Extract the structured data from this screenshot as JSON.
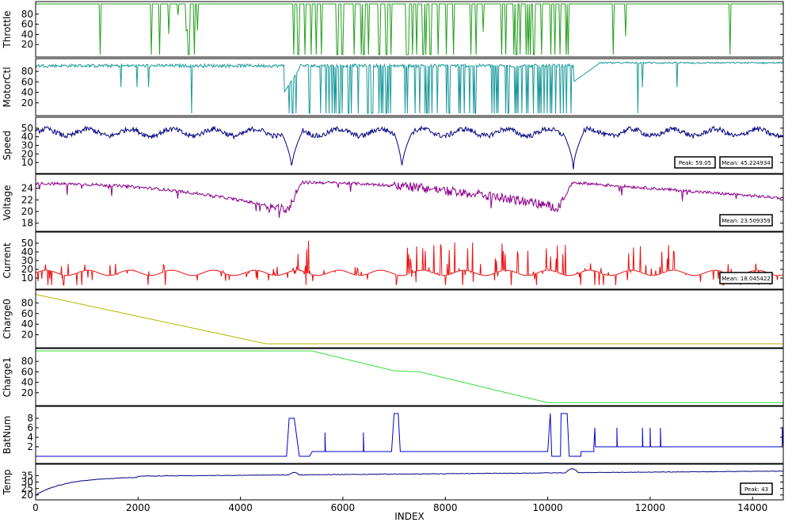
{
  "chart_data": {
    "type": "line",
    "x_label": "INDEX",
    "x_range": [
      0,
      14600
    ],
    "x_ticks": [
      0,
      2000,
      4000,
      6000,
      8000,
      10000,
      12000,
      14000
    ],
    "panels": [
      {
        "key": "throttle",
        "ylabel": "Throttle",
        "color": "#22a01c",
        "ylim": [
          0,
          100
        ],
        "y_ticks": [
          20,
          40,
          60,
          80
        ],
        "generator": "throttle",
        "annotations": [],
        "approx_series": [
          {
            "x": 0,
            "y": 100
          },
          {
            "x": 4900,
            "y": 100
          },
          {
            "x": 5000,
            "y": 0
          },
          {
            "x": 5300,
            "y": 100
          },
          {
            "x": 7000,
            "y": 100
          },
          {
            "x": 7200,
            "y": 0
          },
          {
            "x": 7300,
            "y": 100
          },
          {
            "x": 10300,
            "y": 100
          },
          {
            "x": 10500,
            "y": 0
          },
          {
            "x": 10700,
            "y": 100
          },
          {
            "x": 14600,
            "y": 100
          }
        ]
      },
      {
        "key": "motorctl",
        "ylabel": "MotorCtl",
        "color": "#1a9a9a",
        "ylim": [
          0,
          100
        ],
        "y_ticks": [
          20,
          40,
          60,
          80
        ],
        "generator": "motorctl",
        "annotations": [],
        "approx_series": [
          {
            "x": 0,
            "y": 92
          },
          {
            "x": 4800,
            "y": 92
          },
          {
            "x": 5000,
            "y": 20
          },
          {
            "x": 5400,
            "y": 90
          },
          {
            "x": 7100,
            "y": 88
          },
          {
            "x": 7300,
            "y": 20
          },
          {
            "x": 7500,
            "y": 88
          },
          {
            "x": 10400,
            "y": 90
          },
          {
            "x": 10600,
            "y": 55
          },
          {
            "x": 11000,
            "y": 95
          },
          {
            "x": 14600,
            "y": 98
          }
        ]
      },
      {
        "key": "speed",
        "ylabel": "Speed",
        "color": "#00007f",
        "ylim": [
          0,
          60
        ],
        "y_ticks": [
          10,
          20,
          30,
          40,
          50
        ],
        "generator": "speed",
        "annotations": [
          "Peak: 59.05",
          "Mean: 45.224934"
        ],
        "approx_series": [
          {
            "x": 0,
            "y": 45
          },
          {
            "x": 4800,
            "y": 45
          },
          {
            "x": 5000,
            "y": 2
          },
          {
            "x": 5200,
            "y": 45
          },
          {
            "x": 7000,
            "y": 45
          },
          {
            "x": 7150,
            "y": 2
          },
          {
            "x": 7350,
            "y": 45
          },
          {
            "x": 10300,
            "y": 45
          },
          {
            "x": 10500,
            "y": 2
          },
          {
            "x": 10700,
            "y": 45
          },
          {
            "x": 14600,
            "y": 47
          }
        ]
      },
      {
        "key": "voltage",
        "ylabel": "Voltage",
        "color": "#8b008b",
        "ylim": [
          17,
          26
        ],
        "y_ticks": [
          18,
          20,
          22,
          24
        ],
        "generator": "voltage",
        "annotations": [
          "Mean: 23.509359"
        ],
        "approx_series": [
          {
            "x": 0,
            "y": 24.8
          },
          {
            "x": 2000,
            "y": 24.3
          },
          {
            "x": 4000,
            "y": 22.8
          },
          {
            "x": 4800,
            "y": 20.5
          },
          {
            "x": 5200,
            "y": 25.2
          },
          {
            "x": 7000,
            "y": 24.8
          },
          {
            "x": 8500,
            "y": 23.6
          },
          {
            "x": 10200,
            "y": 20.5
          },
          {
            "x": 10500,
            "y": 25.2
          },
          {
            "x": 12000,
            "y": 24.4
          },
          {
            "x": 14600,
            "y": 22.3
          }
        ]
      },
      {
        "key": "current",
        "ylabel": "Current",
        "color": "#ee1010",
        "ylim": [
          0,
          60
        ],
        "y_ticks": [
          10,
          20,
          30,
          40,
          50
        ],
        "generator": "current",
        "annotations": [
          "Mean: 18.045422"
        ],
        "approx_series": [
          {
            "x": 0,
            "y": 15
          },
          {
            "x": 4800,
            "y": 15
          },
          {
            "x": 5000,
            "y": 55
          },
          {
            "x": 7200,
            "y": 55
          },
          {
            "x": 10500,
            "y": 58
          },
          {
            "x": 14600,
            "y": 15
          }
        ]
      },
      {
        "key": "charge0",
        "ylabel": "Charge0",
        "color": "#b8b800",
        "ylim": [
          0,
          100
        ],
        "y_ticks": [
          20,
          40,
          60,
          80
        ],
        "generator": "charge0",
        "annotations": [],
        "approx_series": [
          {
            "x": 0,
            "y": 96
          },
          {
            "x": 4500,
            "y": 3
          },
          {
            "x": 14600,
            "y": 3
          }
        ]
      },
      {
        "key": "charge1",
        "ylabel": "Charge1",
        "color": "#33dd33",
        "ylim": [
          0,
          100
        ],
        "y_ticks": [
          20,
          40,
          60,
          80
        ],
        "generator": "charge1",
        "annotations": [],
        "approx_series": [
          {
            "x": 0,
            "y": 100
          },
          {
            "x": 5400,
            "y": 100
          },
          {
            "x": 7000,
            "y": 62
          },
          {
            "x": 7500,
            "y": 60
          },
          {
            "x": 10000,
            "y": 1
          },
          {
            "x": 14600,
            "y": 1
          }
        ]
      },
      {
        "key": "batnum",
        "ylabel": "BatNum",
        "color": "#0000cc",
        "ylim": [
          -1,
          10
        ],
        "y_ticks": [
          2,
          4,
          6,
          8
        ],
        "generator": "batnum",
        "annotations": [],
        "approx_series": [
          {
            "x": 0,
            "y": 0
          },
          {
            "x": 4900,
            "y": 0
          },
          {
            "x": 4950,
            "y": 8
          },
          {
            "x": 5050,
            "y": 8
          },
          {
            "x": 5150,
            "y": 0
          },
          {
            "x": 5400,
            "y": 1
          },
          {
            "x": 6950,
            "y": 1
          },
          {
            "x": 7000,
            "y": 9
          },
          {
            "x": 7100,
            "y": 1
          },
          {
            "x": 10000,
            "y": 1
          },
          {
            "x": 10050,
            "y": 9
          },
          {
            "x": 10100,
            "y": 0
          },
          {
            "x": 10250,
            "y": 9
          },
          {
            "x": 10400,
            "y": 0
          },
          {
            "x": 10650,
            "y": 1
          },
          {
            "x": 11200,
            "y": 2
          },
          {
            "x": 14600,
            "y": 2
          }
        ]
      },
      {
        "key": "temp",
        "ylabel": "Temp",
        "color": "#00007f",
        "ylim": [
          18,
          42
        ],
        "y_ticks": [
          20,
          25,
          30,
          35
        ],
        "generator": "temp",
        "annotations": [
          "Peak: 43"
        ],
        "approx_series": [
          {
            "x": 0,
            "y": 20
          },
          {
            "x": 500,
            "y": 28
          },
          {
            "x": 2000,
            "y": 34
          },
          {
            "x": 5000,
            "y": 35.5
          },
          {
            "x": 7000,
            "y": 36.5
          },
          {
            "x": 10000,
            "y": 37.5
          },
          {
            "x": 12000,
            "y": 38.5
          },
          {
            "x": 14600,
            "y": 38.5
          }
        ]
      }
    ]
  }
}
